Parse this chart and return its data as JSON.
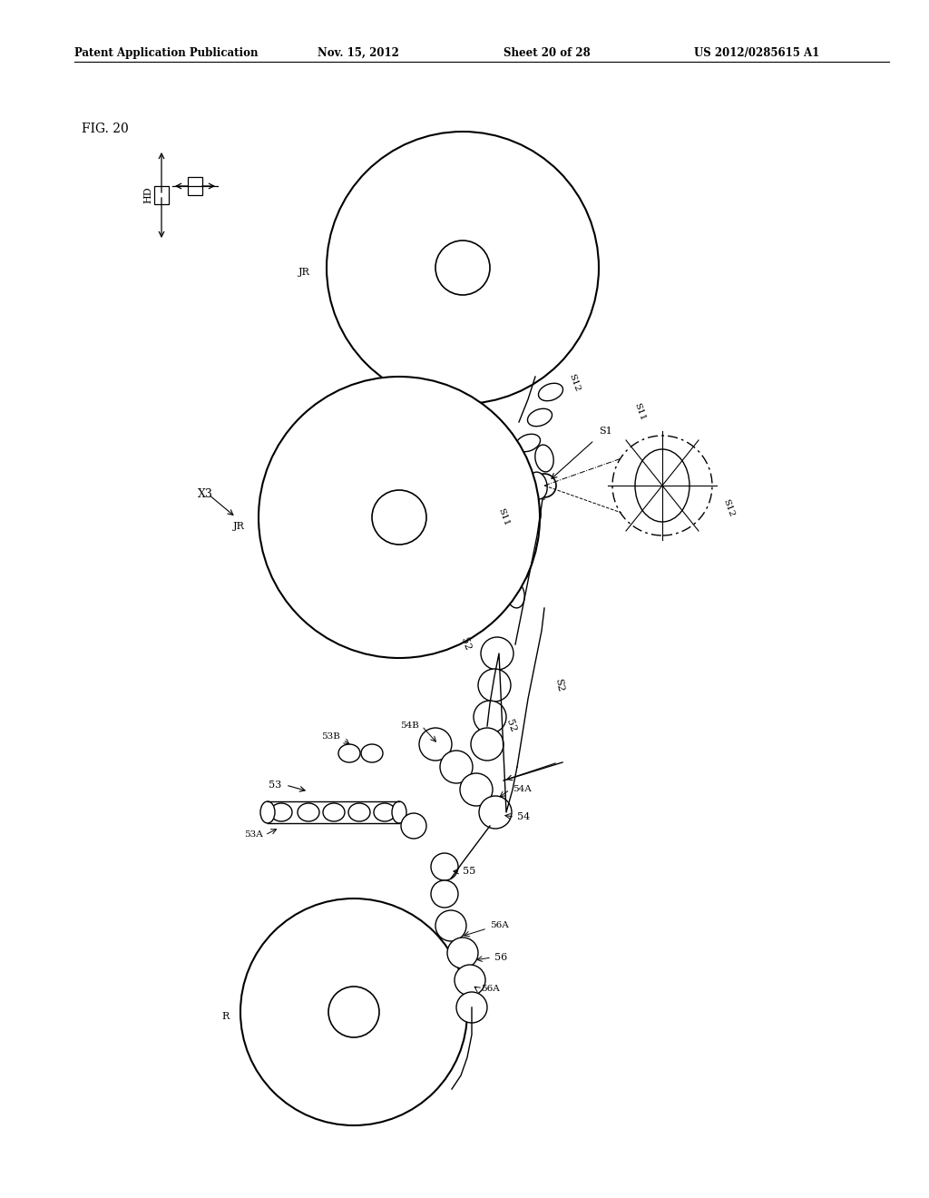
{
  "title_line1": "Patent Application Publication",
  "title_date": "Nov. 15, 2012",
  "title_sheet": "Sheet 20 of 28",
  "title_patent": "US 2012/0285615 A1",
  "fig_label": "FIG. 20",
  "background": "#ffffff",
  "line_color": "#000000",
  "fig_width": 10.24,
  "fig_height": 13.2,
  "dpi": 100
}
